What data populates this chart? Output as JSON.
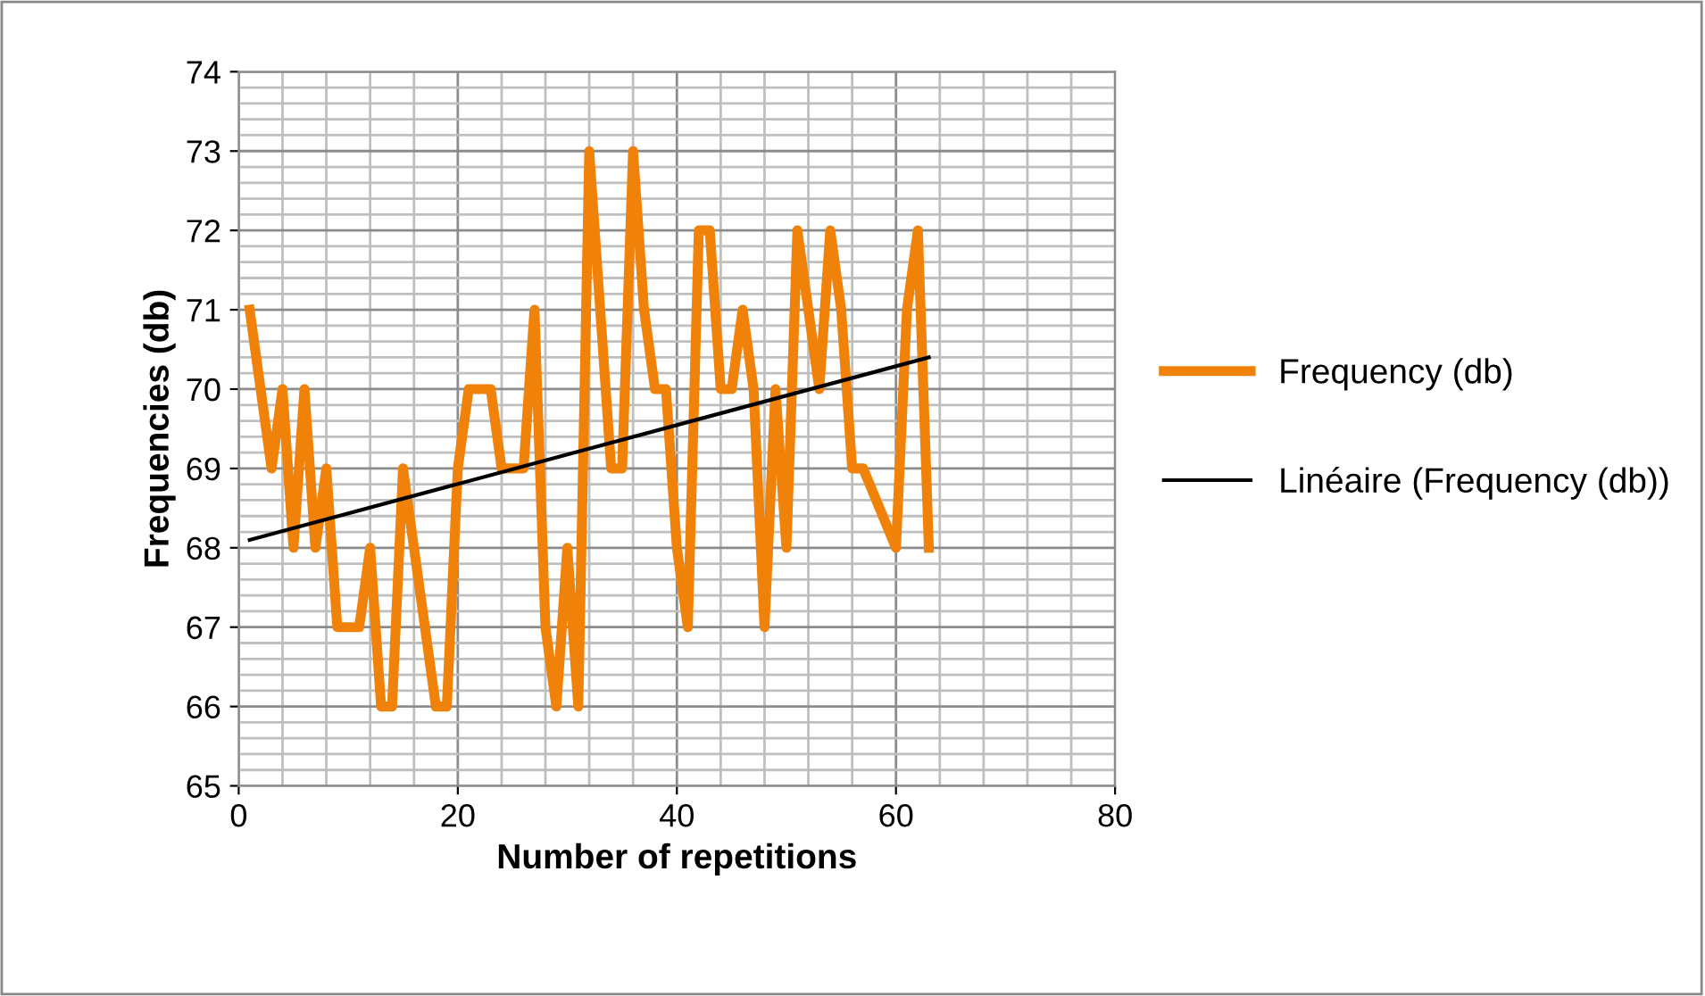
{
  "chart_data": {
    "type": "line",
    "xlabel": "Number of repetitions",
    "ylabel": "Frequencies (db)",
    "xlim": [
      0,
      80
    ],
    "xticks": [
      0,
      20,
      40,
      60,
      80
    ],
    "ylim": [
      65,
      74
    ],
    "yticks": [
      65,
      66,
      67,
      68,
      69,
      70,
      71,
      72,
      73,
      74
    ],
    "grid": true,
    "legend": "right",
    "marker": "none",
    "line_style": "solid",
    "series": [
      {
        "name": "Frequency (db)",
        "color": "#f0820a",
        "x": [
          1,
          2,
          3,
          4,
          5,
          6,
          7,
          8,
          9,
          10,
          11,
          12,
          13,
          14,
          15,
          16,
          17,
          18,
          19,
          20,
          21,
          22,
          23,
          24,
          25,
          26,
          27,
          28,
          29,
          30,
          31,
          32,
          33,
          34,
          35,
          36,
          37,
          38,
          39,
          40,
          41,
          42,
          43,
          44,
          45,
          46,
          47,
          48,
          49,
          50,
          51,
          52,
          53,
          54,
          55,
          56,
          57,
          60,
          61,
          62,
          63
        ],
        "values": [
          71,
          70,
          69,
          70,
          68,
          70,
          68,
          69,
          67,
          67,
          67,
          68,
          66,
          66,
          69,
          68,
          67,
          66,
          66,
          69,
          70,
          70,
          70,
          69,
          69,
          69,
          71,
          67,
          66,
          68,
          66,
          73,
          71,
          69,
          69,
          73,
          71,
          70,
          70,
          68,
          67,
          72,
          72,
          70,
          70,
          71,
          70,
          67,
          70,
          68,
          72,
          71,
          70,
          72,
          71,
          69,
          69,
          68,
          71,
          72,
          68
        ]
      },
      {
        "name": "Linéaire (Frequency (db))",
        "color": "#000000",
        "x": [
          1,
          63
        ],
        "values": [
          68.1,
          70.4
        ]
      }
    ]
  }
}
